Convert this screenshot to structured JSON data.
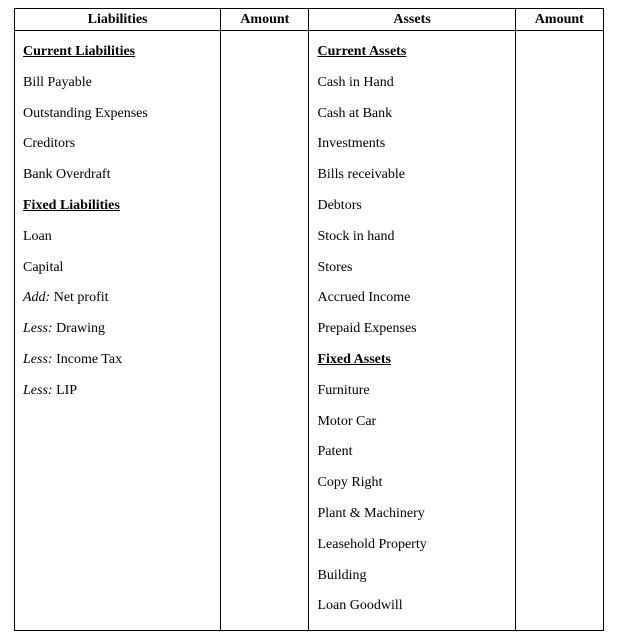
{
  "headers": {
    "liabilities": "Liabilities",
    "amount1": "Amount",
    "assets": "Assets",
    "amount2": "Amount"
  },
  "liabilities": {
    "section1_title": "Current Liabilities",
    "section1_items": {
      "i0": "Bill Payable",
      "i1": "Outstanding Expenses",
      "i2": "Creditors",
      "i3": "Bank Overdraft"
    },
    "section2_title": "Fixed Liabilities",
    "section2_items": {
      "i0": "Loan",
      "i1": "Capital"
    },
    "adjustments": {
      "a0": {
        "prefix": "Add:",
        "label": " Net profit"
      },
      "a1": {
        "prefix": "Less:",
        "label": " Drawing"
      },
      "a2": {
        "prefix": "Less:",
        "label": " Income Tax"
      },
      "a3": {
        "prefix": "Less:",
        "label": " LIP"
      }
    }
  },
  "assets": {
    "section1_title": "Current Assets",
    "section1_items": {
      "i0": "Cash in Hand",
      "i1": "Cash at Bank",
      "i2": "Investments",
      "i3": "Bills receivable",
      "i4": "Debtors",
      "i5": "Stock in hand",
      "i6": "Stores",
      "i7": "Accrued Income",
      "i8": "Prepaid Expenses"
    },
    "section2_title": "Fixed Assets",
    "section2_items": {
      "i0": "Furniture",
      "i1": "Motor Car",
      "i2": "Patent",
      "i3": "Copy Right",
      "i4": "Plant & Machinery",
      "i5": "Leasehold Property",
      "i6": "Building",
      "i7": "Loan Goodwill"
    }
  },
  "style": {
    "font_family": "Times New Roman",
    "header_fontsize": 14,
    "body_fontsize": 14,
    "border_color": "#000000",
    "background": "#ffffff",
    "text_color": "#000000"
  }
}
